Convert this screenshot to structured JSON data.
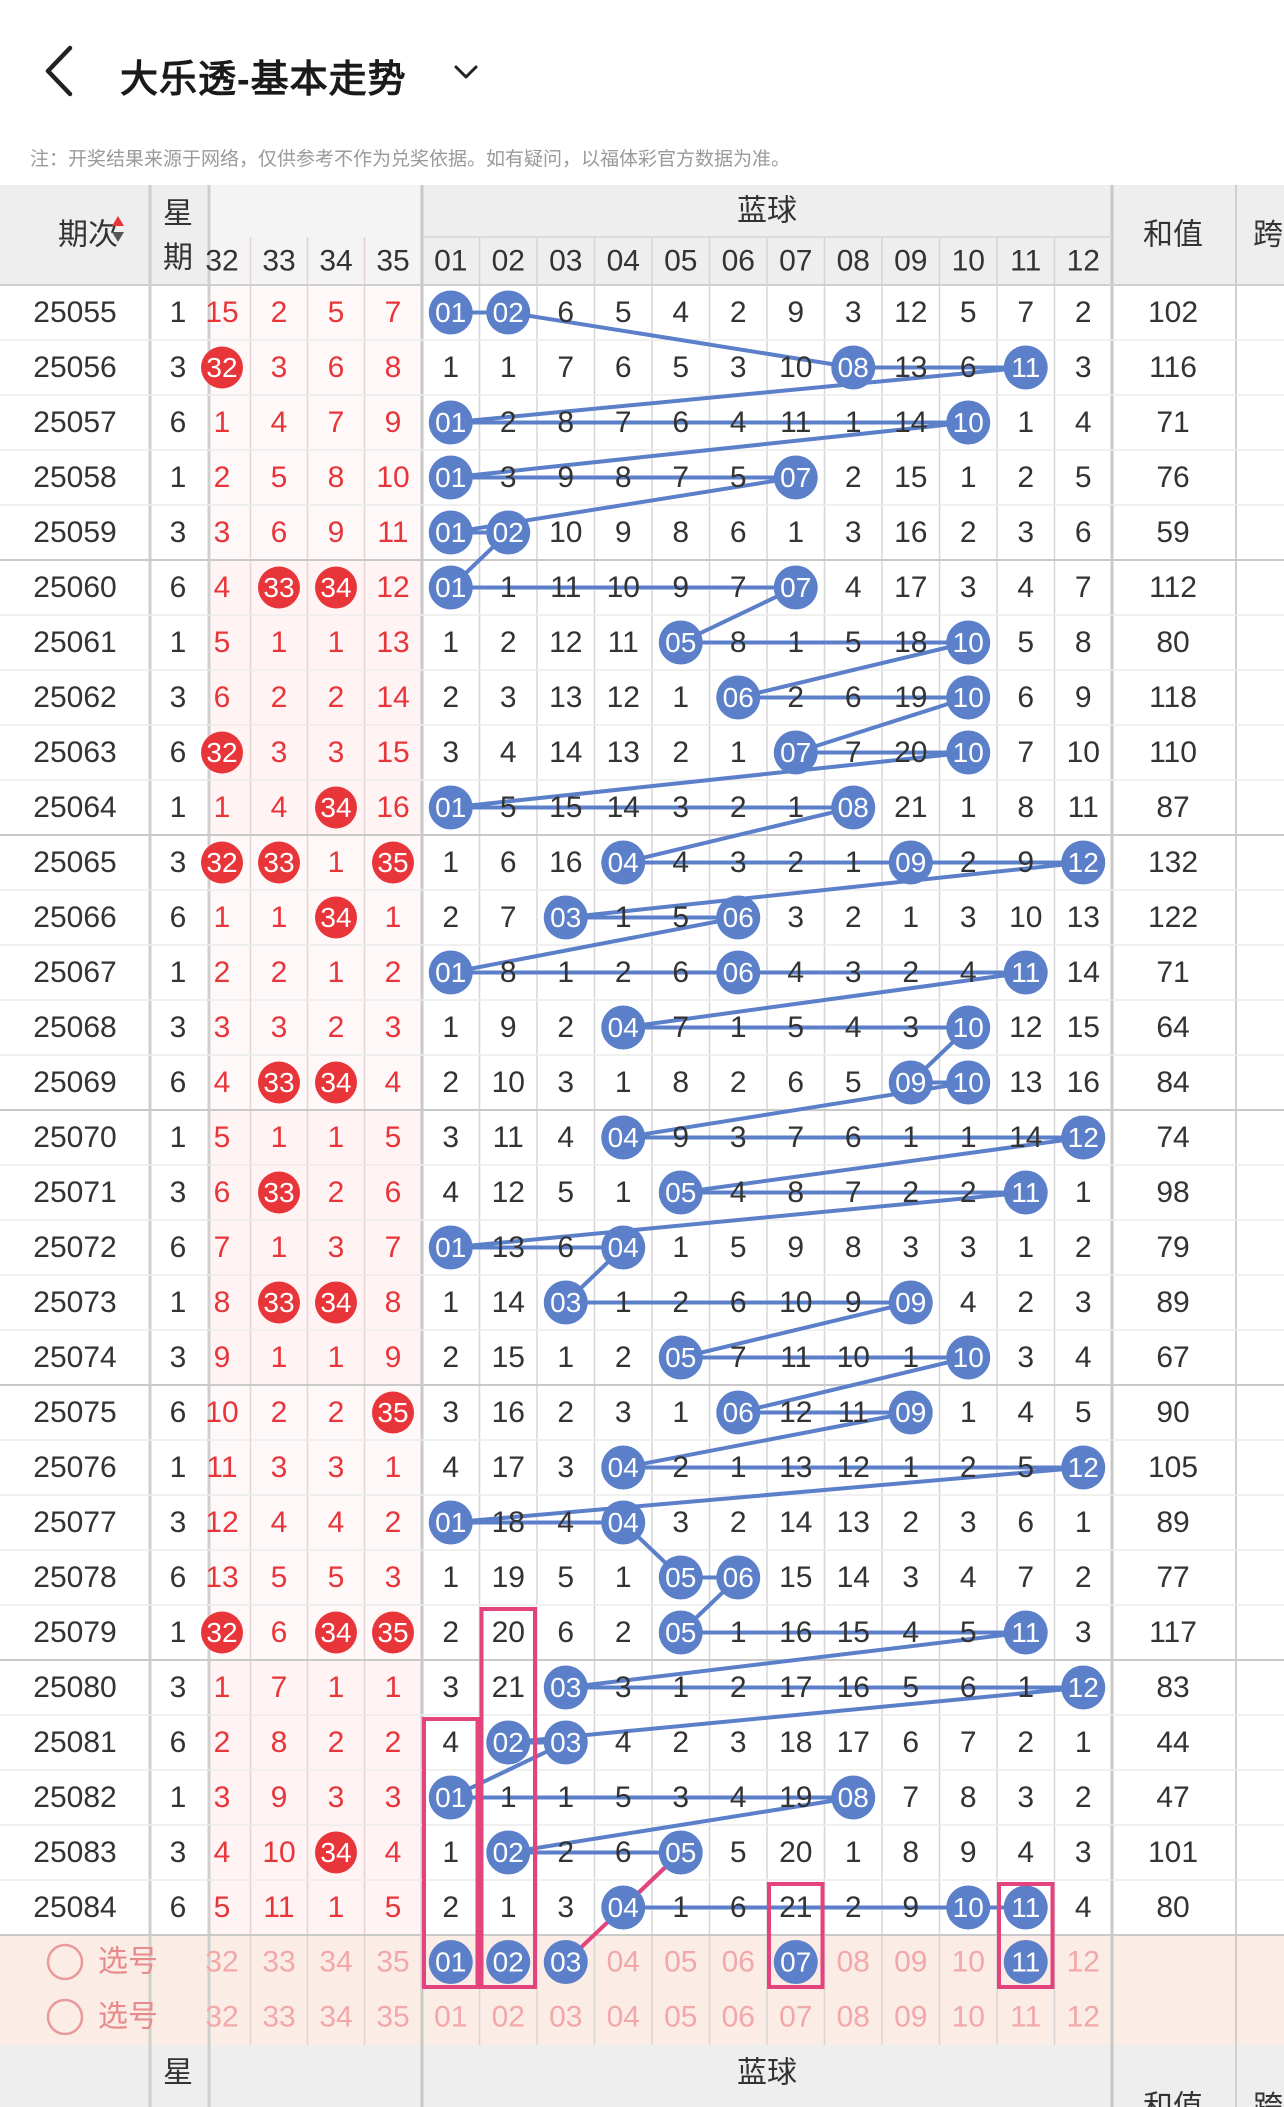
{
  "header": {
    "title": "大乐透-基本走势"
  },
  "notice": "注：开奖结果来源于网络，仅供参考不作为兑奖依据。如有疑问，以福体彩官方数据为准。",
  "columns": {
    "issue": "期次",
    "week": "星期",
    "front_visible": [
      "32",
      "33",
      "34",
      "35"
    ],
    "blue_group": "蓝球",
    "blue": [
      "01",
      "02",
      "03",
      "04",
      "05",
      "06",
      "07",
      "08",
      "09",
      "10",
      "11",
      "12"
    ],
    "sum": "和值",
    "span_partial": "跨"
  },
  "week_partial": "星期",
  "sum_partial": "和值",
  "issue_partial": "-",
  "select_label": "选号",
  "colors": {
    "red": "#e8353a",
    "blue": "#5b7fc9",
    "pink": "#e4447e",
    "header_bg": "#eeeeee",
    "select_bg": "#fcece6"
  },
  "rows": [
    {
      "issue": "25055",
      "week": "1",
      "front": [
        "15",
        "2",
        "5",
        "7"
      ],
      "front_hit": [],
      "blue": [
        "01",
        "02",
        "6",
        "5",
        "4",
        "2",
        "9",
        "3",
        "12",
        "5",
        "7",
        "2"
      ],
      "sum": "102"
    },
    {
      "issue": "25056",
      "week": "3",
      "front": [
        "32",
        "3",
        "6",
        "8"
      ],
      "front_hit": [
        0
      ],
      "blue": [
        "1",
        "1",
        "7",
        "6",
        "5",
        "3",
        "10",
        "08",
        "13",
        "6",
        "11",
        "3"
      ],
      "sum": "116"
    },
    {
      "issue": "25057",
      "week": "6",
      "front": [
        "1",
        "4",
        "7",
        "9"
      ],
      "front_hit": [],
      "blue": [
        "01",
        "2",
        "8",
        "7",
        "6",
        "4",
        "11",
        "1",
        "14",
        "10",
        "1",
        "4"
      ],
      "sum": "71"
    },
    {
      "issue": "25058",
      "week": "1",
      "front": [
        "2",
        "5",
        "8",
        "10"
      ],
      "front_hit": [],
      "blue": [
        "01",
        "3",
        "9",
        "8",
        "7",
        "5",
        "07",
        "2",
        "15",
        "1",
        "2",
        "5"
      ],
      "sum": "76"
    },
    {
      "issue": "25059",
      "week": "3",
      "front": [
        "3",
        "6",
        "9",
        "11"
      ],
      "front_hit": [],
      "blue": [
        "01",
        "02",
        "10",
        "9",
        "8",
        "6",
        "1",
        "3",
        "16",
        "2",
        "3",
        "6"
      ],
      "sum": "59"
    },
    {
      "issue": "25060",
      "week": "6",
      "front": [
        "4",
        "33",
        "34",
        "12"
      ],
      "front_hit": [
        1,
        2
      ],
      "blue": [
        "01",
        "1",
        "11",
        "10",
        "9",
        "7",
        "07",
        "4",
        "17",
        "3",
        "4",
        "7"
      ],
      "sum": "112"
    },
    {
      "issue": "25061",
      "week": "1",
      "front": [
        "5",
        "1",
        "1",
        "13"
      ],
      "front_hit": [],
      "blue": [
        "1",
        "2",
        "12",
        "11",
        "05",
        "8",
        "1",
        "5",
        "18",
        "10",
        "5",
        "8"
      ],
      "sum": "80"
    },
    {
      "issue": "25062",
      "week": "3",
      "front": [
        "6",
        "2",
        "2",
        "14"
      ],
      "front_hit": [],
      "blue": [
        "2",
        "3",
        "13",
        "12",
        "1",
        "06",
        "2",
        "6",
        "19",
        "10",
        "6",
        "9"
      ],
      "sum": "118"
    },
    {
      "issue": "25063",
      "week": "6",
      "front": [
        "32",
        "3",
        "3",
        "15"
      ],
      "front_hit": [
        0
      ],
      "blue": [
        "3",
        "4",
        "14",
        "13",
        "2",
        "1",
        "07",
        "7",
        "20",
        "10",
        "7",
        "10"
      ],
      "sum": "110"
    },
    {
      "issue": "25064",
      "week": "1",
      "front": [
        "1",
        "4",
        "34",
        "16"
      ],
      "front_hit": [
        2
      ],
      "blue": [
        "01",
        "5",
        "15",
        "14",
        "3",
        "2",
        "1",
        "08",
        "21",
        "1",
        "8",
        "11"
      ],
      "sum": "87"
    },
    {
      "issue": "25065",
      "week": "3",
      "front": [
        "32",
        "33",
        "1",
        "35"
      ],
      "front_hit": [
        0,
        1,
        3
      ],
      "blue": [
        "1",
        "6",
        "16",
        "04",
        "4",
        "3",
        "2",
        "1",
        "09",
        "2",
        "9",
        "12"
      ],
      "sum": "132"
    },
    {
      "issue": "25066",
      "week": "6",
      "front": [
        "1",
        "1",
        "34",
        "1"
      ],
      "front_hit": [
        2
      ],
      "blue": [
        "2",
        "7",
        "03",
        "1",
        "5",
        "06",
        "3",
        "2",
        "1",
        "3",
        "10",
        "13"
      ],
      "sum": "122"
    },
    {
      "issue": "25067",
      "week": "1",
      "front": [
        "2",
        "2",
        "1",
        "2"
      ],
      "front_hit": [],
      "blue": [
        "01",
        "8",
        "1",
        "2",
        "6",
        "06",
        "4",
        "3",
        "2",
        "4",
        "11",
        "14"
      ],
      "sum": "71"
    },
    {
      "issue": "25068",
      "week": "3",
      "front": [
        "3",
        "3",
        "2",
        "3"
      ],
      "front_hit": [],
      "blue": [
        "1",
        "9",
        "2",
        "04",
        "7",
        "1",
        "5",
        "4",
        "3",
        "10",
        "12",
        "15"
      ],
      "sum": "64"
    },
    {
      "issue": "25069",
      "week": "6",
      "front": [
        "4",
        "33",
        "34",
        "4"
      ],
      "front_hit": [
        1,
        2
      ],
      "blue": [
        "2",
        "10",
        "3",
        "1",
        "8",
        "2",
        "6",
        "5",
        "09",
        "10",
        "13",
        "16"
      ],
      "sum": "84"
    },
    {
      "issue": "25070",
      "week": "1",
      "front": [
        "5",
        "1",
        "1",
        "5"
      ],
      "front_hit": [],
      "blue": [
        "3",
        "11",
        "4",
        "04",
        "9",
        "3",
        "7",
        "6",
        "1",
        "1",
        "14",
        "12"
      ],
      "sum": "74"
    },
    {
      "issue": "25071",
      "week": "3",
      "front": [
        "6",
        "33",
        "2",
        "6"
      ],
      "front_hit": [
        1
      ],
      "blue": [
        "4",
        "12",
        "5",
        "1",
        "05",
        "4",
        "8",
        "7",
        "2",
        "2",
        "11",
        "1"
      ],
      "sum": "98"
    },
    {
      "issue": "25072",
      "week": "6",
      "front": [
        "7",
        "1",
        "3",
        "7"
      ],
      "front_hit": [],
      "blue": [
        "01",
        "13",
        "6",
        "04",
        "1",
        "5",
        "9",
        "8",
        "3",
        "3",
        "1",
        "2"
      ],
      "sum": "79"
    },
    {
      "issue": "25073",
      "week": "1",
      "front": [
        "8",
        "33",
        "34",
        "8"
      ],
      "front_hit": [
        1,
        2
      ],
      "blue": [
        "1",
        "14",
        "03",
        "1",
        "2",
        "6",
        "10",
        "9",
        "09",
        "4",
        "2",
        "3"
      ],
      "sum": "89"
    },
    {
      "issue": "25074",
      "week": "3",
      "front": [
        "9",
        "1",
        "1",
        "9"
      ],
      "front_hit": [],
      "blue": [
        "2",
        "15",
        "1",
        "2",
        "05",
        "7",
        "11",
        "10",
        "1",
        "10",
        "3",
        "4"
      ],
      "sum": "67"
    },
    {
      "issue": "25075",
      "week": "6",
      "front": [
        "10",
        "2",
        "2",
        "35"
      ],
      "front_hit": [
        3
      ],
      "blue": [
        "3",
        "16",
        "2",
        "3",
        "1",
        "06",
        "12",
        "11",
        "09",
        "1",
        "4",
        "5"
      ],
      "sum": "90"
    },
    {
      "issue": "25076",
      "week": "1",
      "front": [
        "11",
        "3",
        "3",
        "1"
      ],
      "front_hit": [],
      "blue": [
        "4",
        "17",
        "3",
        "04",
        "2",
        "1",
        "13",
        "12",
        "1",
        "2",
        "5",
        "12"
      ],
      "sum": "105"
    },
    {
      "issue": "25077",
      "week": "3",
      "front": [
        "12",
        "4",
        "4",
        "2"
      ],
      "front_hit": [],
      "blue": [
        "01",
        "18",
        "4",
        "04",
        "3",
        "2",
        "14",
        "13",
        "2",
        "3",
        "6",
        "1"
      ],
      "sum": "89"
    },
    {
      "issue": "25078",
      "week": "6",
      "front": [
        "13",
        "5",
        "5",
        "3"
      ],
      "front_hit": [],
      "blue": [
        "1",
        "19",
        "5",
        "1",
        "05",
        "06",
        "15",
        "14",
        "3",
        "4",
        "7",
        "2"
      ],
      "sum": "77"
    },
    {
      "issue": "25079",
      "week": "1",
      "front": [
        "32",
        "6",
        "34",
        "35"
      ],
      "front_hit": [
        0,
        2,
        3
      ],
      "blue": [
        "2",
        "20",
        "6",
        "2",
        "05",
        "1",
        "16",
        "15",
        "4",
        "5",
        "11",
        "3"
      ],
      "sum": "117"
    },
    {
      "issue": "25080",
      "week": "3",
      "front": [
        "1",
        "7",
        "1",
        "1"
      ],
      "front_hit": [],
      "blue": [
        "3",
        "21",
        "03",
        "3",
        "1",
        "2",
        "17",
        "16",
        "5",
        "6",
        "1",
        "12"
      ],
      "sum": "83"
    },
    {
      "issue": "25081",
      "week": "6",
      "front": [
        "2",
        "8",
        "2",
        "2"
      ],
      "front_hit": [],
      "blue": [
        "4",
        "02",
        "03",
        "4",
        "2",
        "3",
        "18",
        "17",
        "6",
        "7",
        "2",
        "1"
      ],
      "sum": "44"
    },
    {
      "issue": "25082",
      "week": "1",
      "front": [
        "3",
        "9",
        "3",
        "3"
      ],
      "front_hit": [],
      "blue": [
        "01",
        "1",
        "1",
        "5",
        "3",
        "4",
        "19",
        "08",
        "7",
        "8",
        "3",
        "2"
      ],
      "sum": "47"
    },
    {
      "issue": "25083",
      "week": "3",
      "front": [
        "4",
        "10",
        "34",
        "4"
      ],
      "front_hit": [
        2
      ],
      "blue": [
        "1",
        "02",
        "2",
        "6",
        "05",
        "5",
        "20",
        "1",
        "8",
        "9",
        "4",
        "3"
      ],
      "sum": "101"
    },
    {
      "issue": "25084",
      "week": "6",
      "front": [
        "5",
        "11",
        "1",
        "5"
      ],
      "front_hit": [],
      "blue": [
        "2",
        "1",
        "3",
        "04",
        "1",
        "6",
        "21",
        "2",
        "9",
        "10",
        "11",
        "4"
      ],
      "sum": "80"
    }
  ],
  "select_rows": [
    {
      "label": "选号",
      "front": [
        "32",
        "33",
        "34",
        "35"
      ],
      "blue": [
        "01",
        "02",
        "03",
        "04",
        "05",
        "06",
        "07",
        "08",
        "09",
        "10",
        "11",
        "12"
      ],
      "picked": [
        "01",
        "02",
        "03",
        "07",
        "11"
      ]
    },
    {
      "label": "选号",
      "front": [
        "32",
        "33",
        "34",
        "35"
      ],
      "blue": [
        "01",
        "02",
        "03",
        "04",
        "05",
        "06",
        "07",
        "08",
        "09",
        "10",
        "11",
        "12"
      ],
      "picked": []
    }
  ]
}
